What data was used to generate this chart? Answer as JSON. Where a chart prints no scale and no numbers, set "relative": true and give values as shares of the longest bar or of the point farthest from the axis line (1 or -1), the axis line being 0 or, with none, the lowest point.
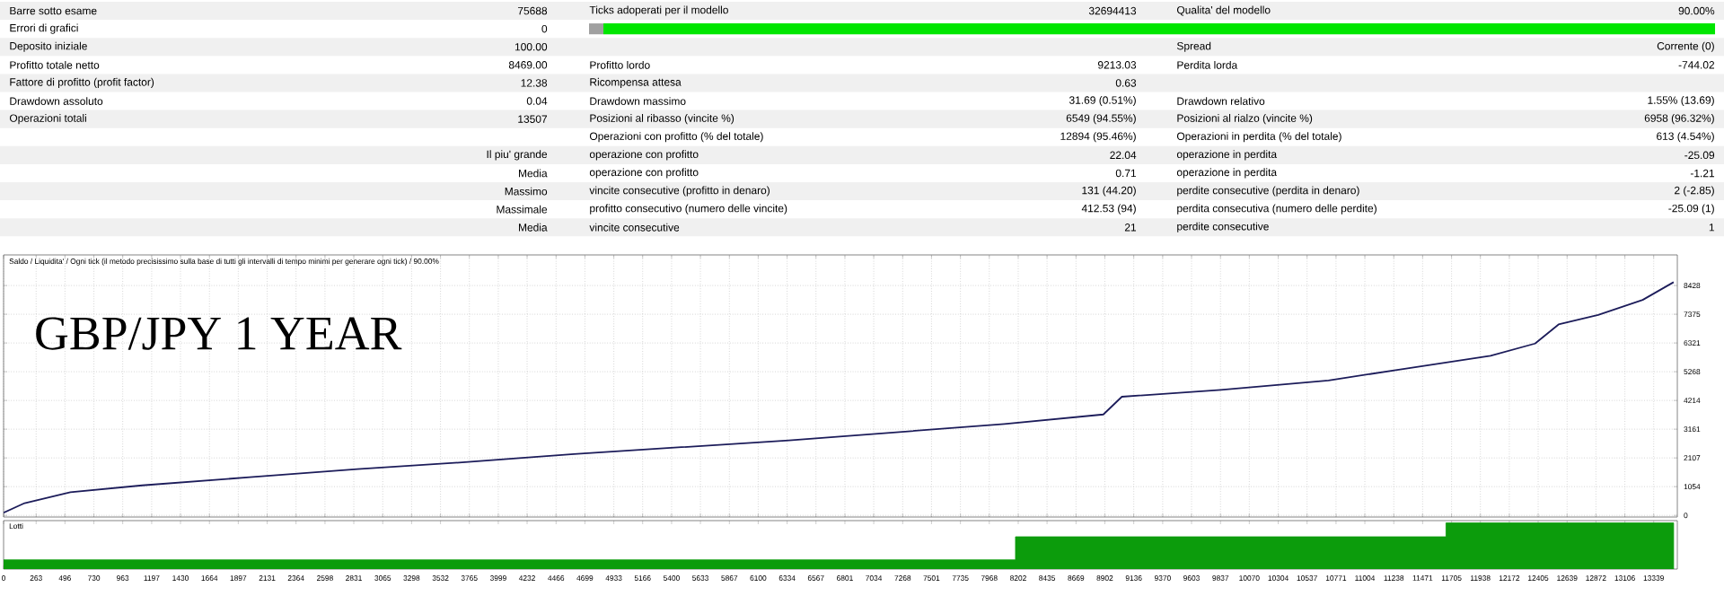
{
  "chart_data": [
    {
      "type": "other",
      "annotations": [
        "Barre sotto esame",
        "75688",
        "Ticks adoperati per il modello",
        "32694413",
        "Qualita' del modello",
        "90.00%",
        "Errori di grafici",
        "0",
        "Deposito iniziale",
        "100.00",
        "Spread",
        "Corrente (0)",
        "Profitto totale netto",
        "8469.00",
        "Profitto lordo",
        "9213.03",
        "Perdita lorda",
        "-744.02",
        "Fattore di profitto (profit factor)",
        "12.38",
        "Ricompensa attesa",
        "0.63",
        "Drawdown assoluto",
        "0.04",
        "Drawdown massimo",
        "31.69 (0.51%)",
        "Drawdown relativo",
        "1.55% (13.69)",
        "Operazioni totali",
        "13507",
        "Posizioni al ribasso (vincite %)",
        "6549 (94.55%)",
        "Posizioni al rialzo (vincite %)",
        "6958 (96.32%)",
        "Operazioni con profitto (% del totale)",
        "12894 (95.46%)",
        "Operazioni in perdita (% del totale)",
        "613 (4.54%)",
        "Il piu' grande",
        "operazione con profitto",
        "22.04",
        "operazione in perdita",
        "-25.09",
        "Media",
        "operazione con profitto",
        "0.71",
        "operazione in perdita",
        "-1.21",
        "Massimo",
        "vincite consecutive (profitto in denaro)",
        "131 (44.20)",
        "perdite consecutive (perdita in denaro)",
        "2 (-2.85)",
        "Massimale",
        "profitto consecutivo (numero delle vincite)",
        "412.53 (94)",
        "perdita consecutiva (numero delle perdite)",
        "-25.09 (1)",
        "Media",
        "vincite consecutive",
        "21",
        "perdite consecutive",
        "1"
      ]
    },
    {
      "type": "line",
      "title": "GBP/JPY 1 YEAR",
      "subtitle": "Saldo / Liquidita' / Ogni tick (il metodo precisissimo sulla base di tutti gli intervalli di tempo minimi per generare ogni tick) / 90.00%",
      "x": [
        0,
        170,
        540,
        1120,
        1990,
        2860,
        3730,
        4610,
        5480,
        6350,
        7220,
        8090,
        8890,
        9040,
        9840,
        10710,
        11290,
        12020,
        12380,
        12570,
        12890,
        13250,
        13500
      ],
      "series": [
        {
          "color": "#1c1c5a",
          "values": [
            100,
            450,
            850,
            1100,
            1400,
            1700,
            1950,
            2250,
            2500,
            2750,
            3050,
            3350,
            3700,
            4350,
            4600,
            4950,
            5350,
            5850,
            6300,
            7000,
            7350,
            7900,
            8550
          ]
        }
      ],
      "xlim": [
        0,
        13530
      ],
      "ylim": [
        -60,
        9550
      ],
      "xticks": [
        0,
        263,
        496,
        730,
        963,
        1197,
        1430,
        1664,
        1897,
        2131,
        2364,
        2598,
        2831,
        3065,
        3298,
        3532,
        3765,
        3999,
        4232,
        4466,
        4699,
        4933,
        5166,
        5400,
        5633,
        5867,
        6100,
        6334,
        6567,
        6801,
        7034,
        7268,
        7501,
        7735,
        7968,
        8202,
        8435,
        8669,
        8902,
        9136,
        9370,
        9603,
        9837,
        10070,
        10304,
        10537,
        10771,
        11004,
        11238,
        11471,
        11705,
        11938,
        12172,
        12405,
        12639,
        12872,
        13106,
        13339
      ],
      "yticks": [
        0,
        1054,
        2107,
        3161,
        4214,
        5268,
        6321,
        7375,
        8428
      ],
      "grid": true,
      "tick_labels": "y"
    },
    {
      "type": "area",
      "title": "Lotti",
      "relative": true,
      "x": [
        0,
        8180,
        8180,
        11660,
        11660,
        13500
      ],
      "series": [
        {
          "color": "#0c9c0c",
          "values": [
            0.2,
            0.2,
            0.7,
            0.7,
            1,
            1
          ]
        }
      ],
      "xlim": [
        0,
        13530
      ],
      "xticks": [
        0,
        263,
        496,
        730,
        963,
        1197,
        1430,
        1664,
        1897,
        2131,
        2364,
        2598,
        2831,
        3065,
        3298,
        3532,
        3765,
        3999,
        4232,
        4466,
        4699,
        4933,
        5166,
        5400,
        5633,
        5867,
        6100,
        6334,
        6567,
        6801,
        7034,
        7268,
        7501,
        7735,
        7968,
        8202,
        8435,
        8669,
        8902,
        9136,
        9370,
        9603,
        9837,
        10070,
        10304,
        10537,
        10771,
        11004,
        11238,
        11471,
        11705,
        11938,
        12172,
        12405,
        12639,
        12872,
        13106,
        13339
      ],
      "tick_labels": "x"
    }
  ]
}
